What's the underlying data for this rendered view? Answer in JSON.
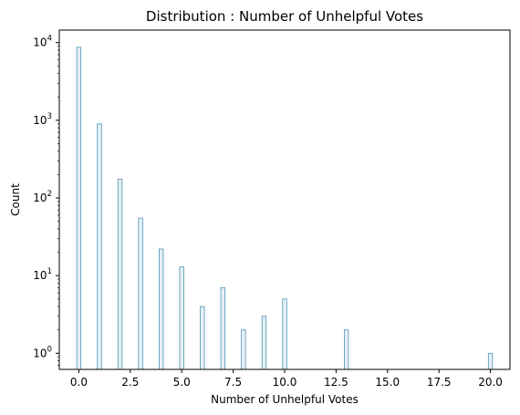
{
  "chart_data": {
    "type": "bar",
    "title": "Distribution : Number of Unhelpful Votes",
    "xlabel": "Number of Unhelpful Votes",
    "ylabel": "Count",
    "x": [
      0,
      1,
      2,
      3,
      4,
      5,
      6,
      7,
      8,
      9,
      10,
      13,
      20
    ],
    "values": [
      8700,
      900,
      175,
      55,
      22,
      13,
      4,
      7,
      2,
      3,
      5,
      2,
      1
    ],
    "xlim": [
      -0.95,
      20.95
    ],
    "ylim": [
      0.62,
      14500
    ],
    "yscale": "log",
    "xticks": [
      0.0,
      2.5,
      5.0,
      7.5,
      10.0,
      12.5,
      15.0,
      17.5,
      20.0
    ],
    "xtick_labels": [
      "0.0",
      "2.5",
      "5.0",
      "7.5",
      "10.0",
      "12.5",
      "15.0",
      "17.5",
      "20.0"
    ],
    "yticks": [
      1,
      10,
      100,
      1000,
      10000
    ],
    "ytick_labels": [
      {
        "base": "10",
        "exp": "0"
      },
      {
        "base": "10",
        "exp": "1"
      },
      {
        "base": "10",
        "exp": "2"
      },
      {
        "base": "10",
        "exp": "3"
      },
      {
        "base": "10",
        "exp": "4"
      }
    ],
    "bar_fill": "#e6f0f6",
    "bar_edge": "#4e93b5",
    "grid": false,
    "legend": "none"
  }
}
